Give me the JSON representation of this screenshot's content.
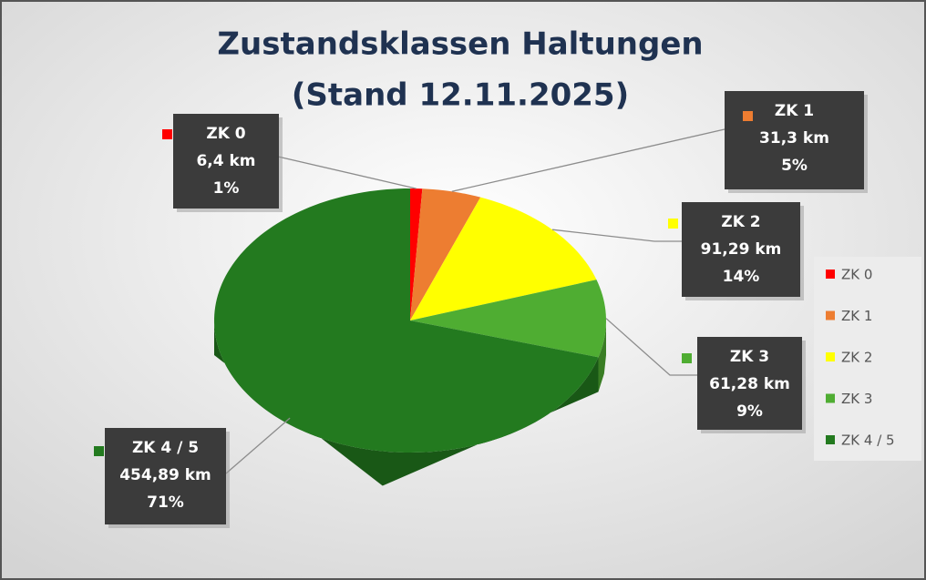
{
  "chart_data": {
    "type": "pie3d",
    "title": "Zustandsklassen Haltungen",
    "subtitle": "(Stand 12.11.2025)",
    "categories": [
      "ZK 0",
      "ZK 1",
      "ZK 2",
      "ZK 3",
      "ZK 4 / 5"
    ],
    "values": [
      6.4,
      31.3,
      91.29,
      61.28,
      454.89
    ],
    "value_labels": [
      "6,4 km",
      "31,3 km",
      "91,29 km",
      "61,28 km",
      "454,89 km"
    ],
    "percent_values": [
      1,
      5,
      14,
      9,
      71
    ],
    "percent_labels": [
      "1%",
      "5%",
      "14%",
      "9%",
      "71%"
    ],
    "colors": [
      "#ff0000",
      "#ed7d31",
      "#ffff00",
      "#4fad32",
      "#237a1f"
    ],
    "legend": "right"
  }
}
